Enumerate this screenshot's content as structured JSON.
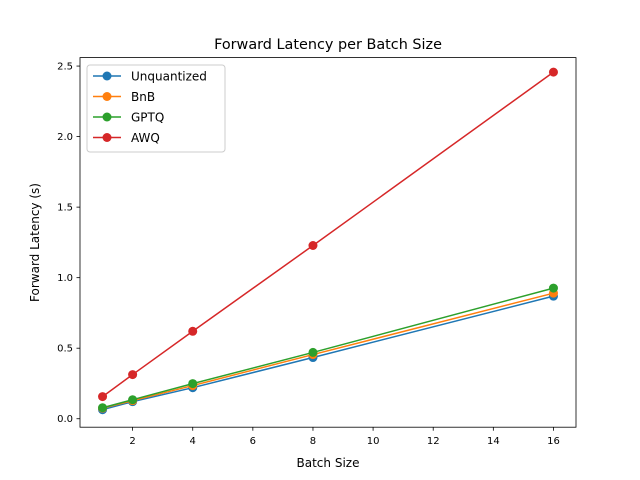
{
  "chart_data": {
    "type": "line",
    "title": "Forward Latency per Batch Size",
    "xlabel": "Batch Size",
    "ylabel": "Forward Latency (s)",
    "xlim": [
      0.25,
      16.75
    ],
    "ylim": [
      -0.06,
      2.56
    ],
    "xticks": [
      2,
      4,
      6,
      8,
      10,
      12,
      14,
      16
    ],
    "xtick_labels": [
      "2",
      "4",
      "6",
      "8",
      "10",
      "12",
      "14",
      "16"
    ],
    "yticks": [
      0.0,
      0.5,
      1.0,
      1.5,
      2.0,
      2.5
    ],
    "ytick_labels": [
      "0.0",
      "0.5",
      "1.0",
      "1.5",
      "2.0",
      "2.5"
    ],
    "grid": false,
    "legend_position": "top-left",
    "x": [
      1,
      2,
      4,
      8,
      16
    ],
    "series": [
      {
        "name": "Unquantized",
        "color": "#1f77b4",
        "values": [
          0.064,
          0.121,
          0.22,
          0.434,
          0.869
        ]
      },
      {
        "name": "BnB",
        "color": "#ff7f0e",
        "values": [
          0.075,
          0.128,
          0.235,
          0.455,
          0.89
        ]
      },
      {
        "name": "GPTQ",
        "color": "#2ca02c",
        "values": [
          0.078,
          0.135,
          0.249,
          0.47,
          0.926
        ]
      },
      {
        "name": "AWQ",
        "color": "#d62728",
        "values": [
          0.157,
          0.313,
          0.62,
          1.228,
          2.457
        ]
      }
    ]
  }
}
